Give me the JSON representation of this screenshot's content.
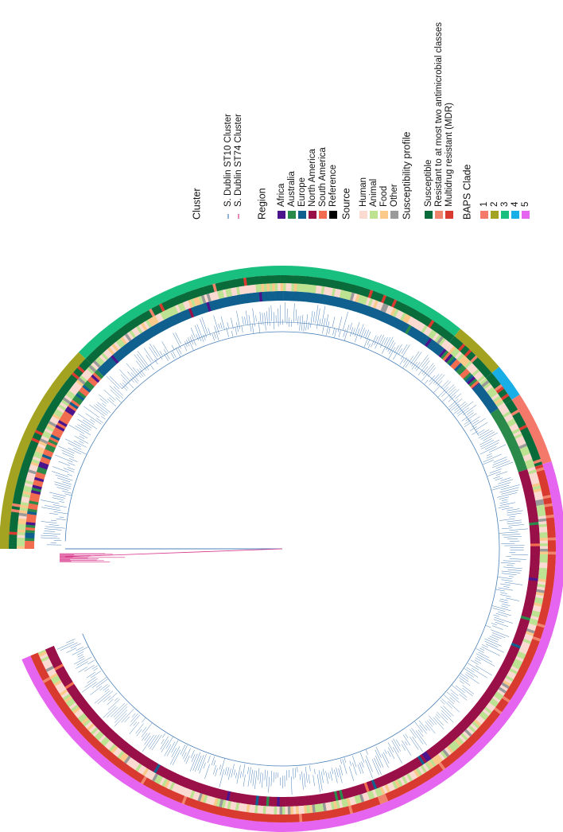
{
  "legend": [
    {
      "title": "Cluster",
      "items": [
        {
          "label": "S. Dublin ST10 Cluster",
          "color": "#4a80b8"
        },
        {
          "label": "S. Dublin ST74 Cluster",
          "color": "#d8348a"
        }
      ]
    },
    {
      "title": "Region",
      "items": [
        {
          "label": "Africa",
          "color": "#4b148c"
        },
        {
          "label": "Australia",
          "color": "#2a8a4a"
        },
        {
          "label": "Europe",
          "color": "#10608f"
        },
        {
          "label": "North America",
          "color": "#990f48"
        },
        {
          "label": "South America",
          "color": "#f26d4f"
        },
        {
          "label": "Reference",
          "color": "#000000"
        }
      ]
    },
    {
      "title": "Source",
      "items": [
        {
          "label": "Human",
          "color": "#fbdad2"
        },
        {
          "label": "Animal",
          "color": "#bce292"
        },
        {
          "label": "Food",
          "color": "#fbc98a"
        },
        {
          "label": "Other",
          "color": "#9a9a9a"
        }
      ]
    },
    {
      "title": "Susceptibility profile",
      "items": [
        {
          "label": "Susceptible",
          "color": "#0a6b3a"
        },
        {
          "label": "Resistant to at most two antimicrobial classes",
          "color": "#f0836c"
        },
        {
          "label": "Multidrug resistant (MDR)",
          "color": "#d93a2f"
        }
      ]
    },
    {
      "title": "BAPS Clade",
      "items": [
        {
          "label": "1",
          "color": "#f5796b"
        },
        {
          "label": "2",
          "color": "#a3a321"
        },
        {
          "label": "3",
          "color": "#19bf7e"
        },
        {
          "label": "4",
          "color": "#1aaee6"
        },
        {
          "label": "5",
          "color": "#e565f0"
        }
      ]
    }
  ]
}
